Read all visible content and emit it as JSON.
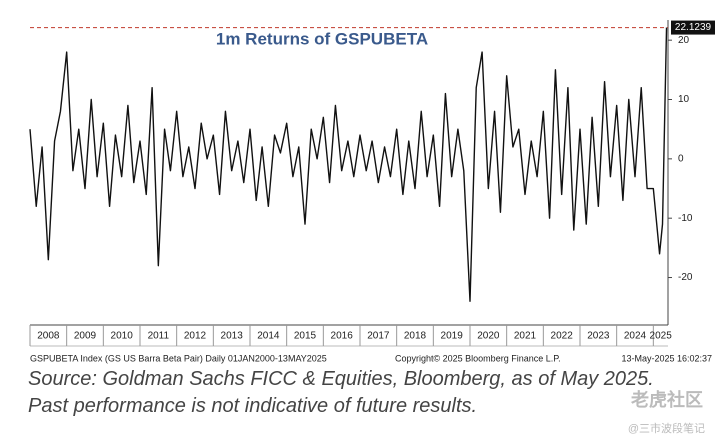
{
  "chart_data": {
    "type": "line",
    "title": "1m Returns of GSPUBETA",
    "color": "#111111",
    "x": [
      2008,
      2008.17,
      2008.33,
      2008.5,
      2008.67,
      2008.83,
      2009,
      2009.17,
      2009.33,
      2009.5,
      2009.67,
      2009.83,
      2010,
      2010.17,
      2010.33,
      2010.5,
      2010.67,
      2010.83,
      2011,
      2011.17,
      2011.33,
      2011.5,
      2011.67,
      2011.83,
      2012,
      2012.17,
      2012.33,
      2012.5,
      2012.67,
      2012.83,
      2013,
      2013.17,
      2013.33,
      2013.5,
      2013.67,
      2013.83,
      2014,
      2014.17,
      2014.33,
      2014.5,
      2014.67,
      2014.83,
      2015,
      2015.17,
      2015.33,
      2015.5,
      2015.67,
      2015.83,
      2016,
      2016.17,
      2016.33,
      2016.5,
      2016.67,
      2016.83,
      2017,
      2017.17,
      2017.33,
      2017.5,
      2017.67,
      2017.83,
      2018,
      2018.17,
      2018.33,
      2018.5,
      2018.67,
      2018.83,
      2019,
      2019.17,
      2019.33,
      2019.5,
      2019.67,
      2019.83,
      2020,
      2020.17,
      2020.33,
      2020.5,
      2020.67,
      2020.83,
      2021,
      2021.17,
      2021.33,
      2021.5,
      2021.67,
      2021.83,
      2022,
      2022.17,
      2022.33,
      2022.5,
      2022.67,
      2022.83,
      2023,
      2023.17,
      2023.33,
      2023.5,
      2023.67,
      2023.83,
      2024,
      2024.17,
      2024.33,
      2024.5,
      2024.67,
      2024.83,
      2025,
      2025.17,
      2025.25,
      2025.36
    ],
    "values": [
      5,
      -8,
      2,
      -17,
      3,
      8,
      18,
      -2,
      5,
      -5,
      10,
      -3,
      6,
      -8,
      4,
      -3,
      9,
      -4,
      3,
      -6,
      12,
      -18,
      5,
      -2,
      8,
      -3,
      2,
      -5,
      6,
      0,
      4,
      -6,
      8,
      -2,
      3,
      -4,
      5,
      -7,
      2,
      -8,
      4,
      1,
      6,
      -3,
      2,
      -11,
      5,
      0,
      7,
      -4,
      9,
      -2,
      3,
      -3,
      4,
      -2,
      3,
      -4,
      2,
      -3,
      5,
      -6,
      3,
      -5,
      8,
      -3,
      4,
      -8,
      11,
      -3,
      5,
      -2,
      -24,
      12,
      18,
      -5,
      8,
      -9,
      14,
      2,
      5,
      -6,
      3,
      -3,
      8,
      -10,
      15,
      -6,
      12,
      -12,
      5,
      -11,
      7,
      -8,
      13,
      -3,
      9,
      -7,
      10,
      -3,
      12,
      -5,
      -5,
      -16,
      -11,
      22.1239
    ],
    "xlim": [
      2008,
      2025.4
    ],
    "xticks": [
      2008,
      2009,
      2010,
      2011,
      2012,
      2013,
      2014,
      2015,
      2016,
      2017,
      2018,
      2019,
      2020,
      2021,
      2022,
      2023,
      2024,
      2025
    ],
    "ylim": [
      -28,
      23.4
    ],
    "yticks": [
      -20,
      -10,
      0,
      10,
      20
    ],
    "reference_line": {
      "value": 22.1239,
      "color": "#c0392b"
    },
    "footnotes": [
      "GSPUBETA Index (GS US Barra Beta Pair)  Daily 01JAN2000-13MAY2025",
      "Copyright© 2025 Bloomberg Finance L.P.",
      "13-May-2025 16:02:37"
    ]
  },
  "source": "Source: Goldman Sachs FICC & Equities, Bloomberg, as of May 2025. Past performance is not indicative of future results.",
  "watermark": {
    "brand": "老虎社区",
    "handle": "@三市波段笔记"
  }
}
